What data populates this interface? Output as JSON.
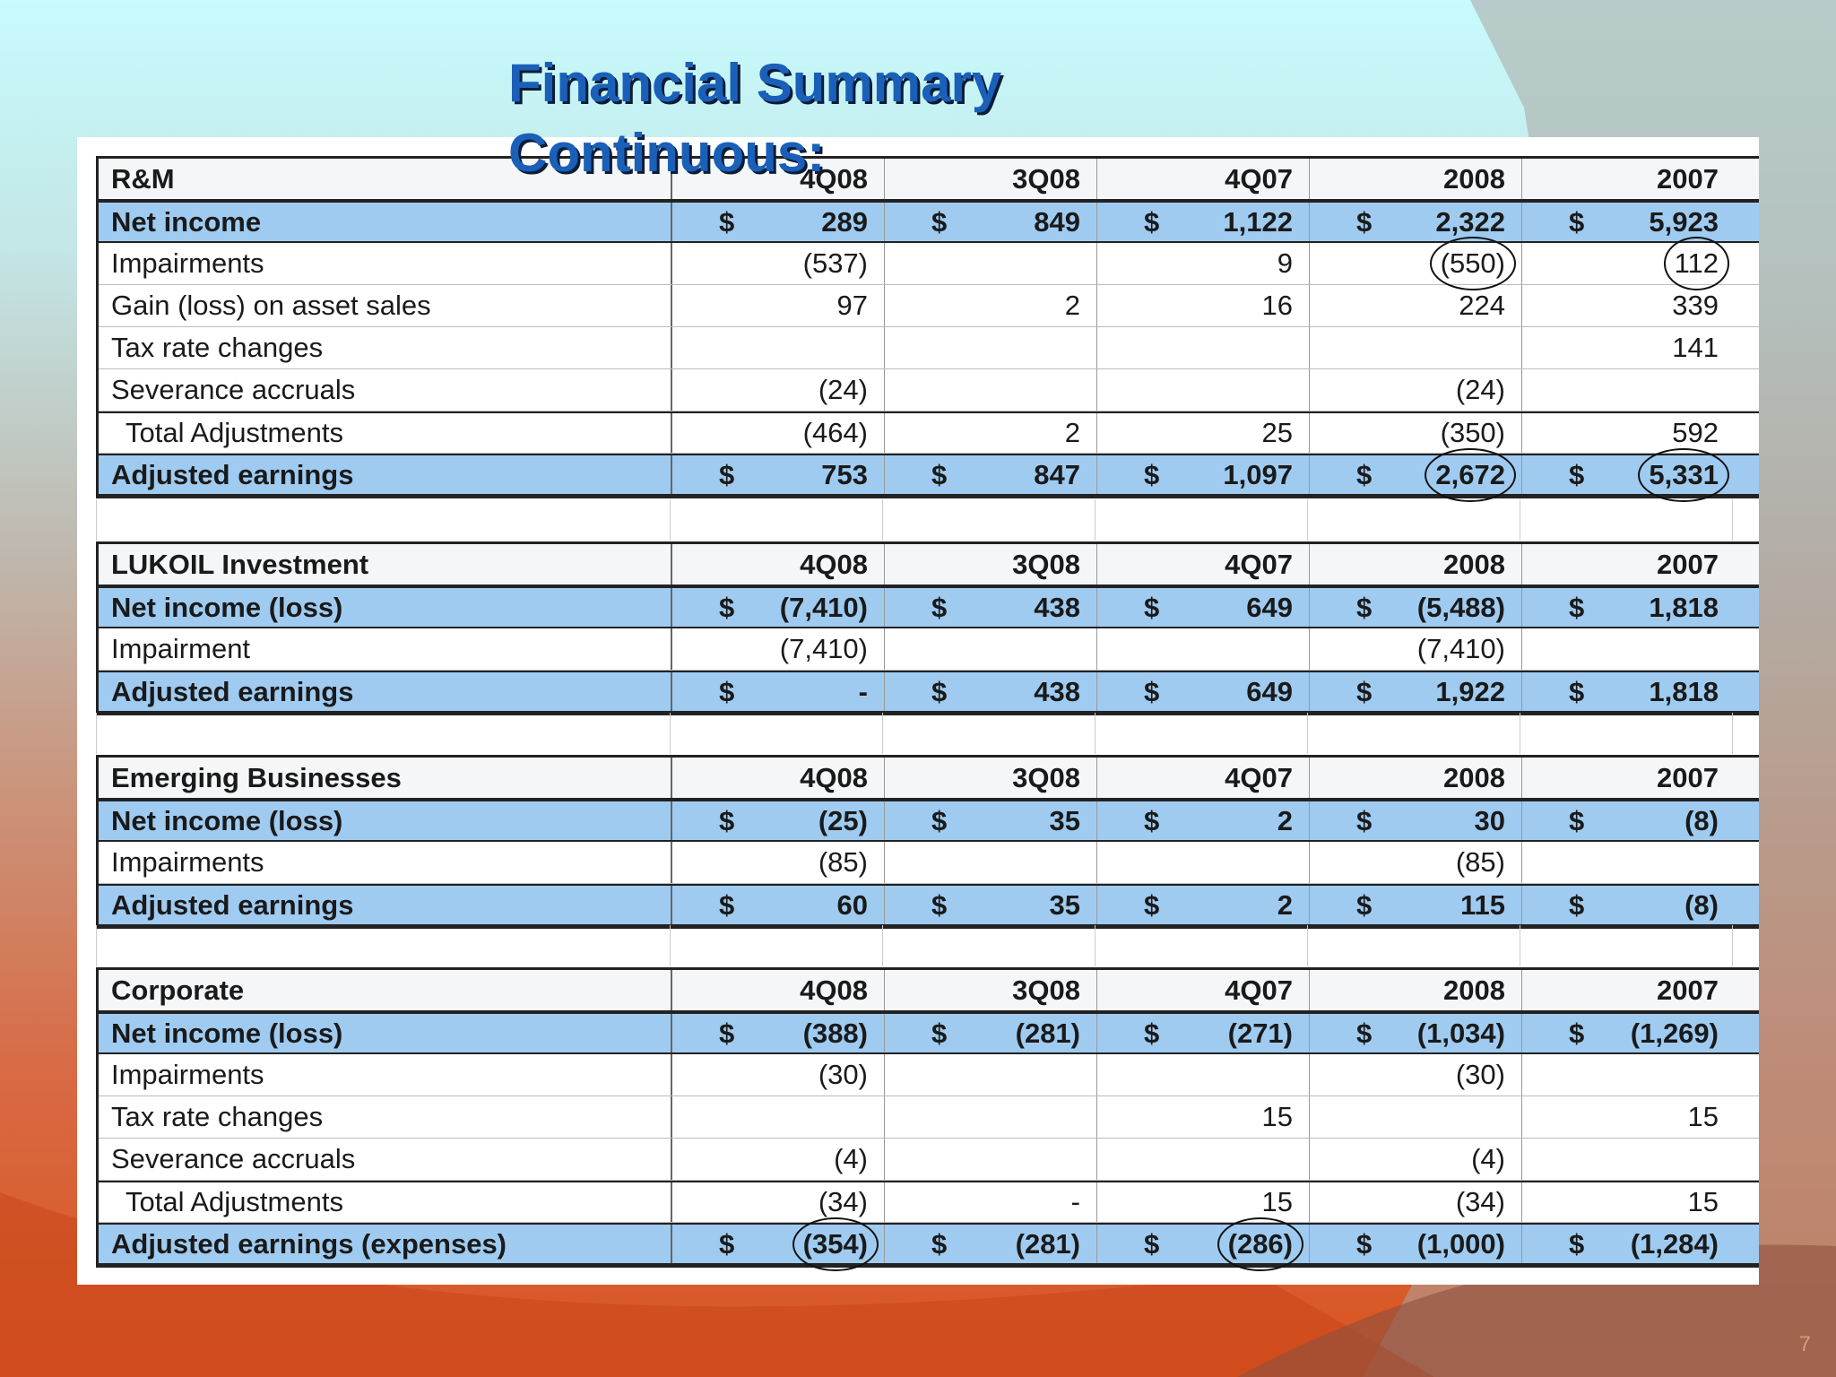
{
  "slide": {
    "title_line1": "Financial Summary",
    "title_line2": "Continuous:",
    "page_number": "7",
    "colors": {
      "title": "#1a5fb8",
      "highlight_row": "#9fcbf1"
    }
  },
  "columns": [
    "4Q08",
    "3Q08",
    "4Q07",
    "2008",
    "2007"
  ],
  "sections": [
    {
      "name": "R&M",
      "headers": [
        "4Q08",
        "3Q08",
        "4Q07",
        "2008",
        "2007"
      ],
      "rows": [
        {
          "label": "Net income",
          "style": "highlight",
          "dollar": true,
          "values": [
            "289",
            "849",
            "1,122",
            "2,322",
            "5,923"
          ]
        },
        {
          "label": "Impairments",
          "values": [
            "(537)",
            "",
            "9",
            "(550)",
            "112"
          ],
          "circled": [
            3,
            4
          ]
        },
        {
          "label": "Gain (loss) on asset sales",
          "values": [
            "97",
            "2",
            "16",
            "224",
            "339"
          ]
        },
        {
          "label": "Tax rate changes",
          "values": [
            "",
            "",
            "",
            "",
            "141"
          ]
        },
        {
          "label": "Severance accruals",
          "values": [
            "(24)",
            "",
            "",
            "(24)",
            ""
          ]
        },
        {
          "label": "Total Adjustments",
          "style": "total",
          "values": [
            "(464)",
            "2",
            "25",
            "(350)",
            "592"
          ]
        },
        {
          "label": "Adjusted earnings",
          "style": "highlight",
          "dollar": true,
          "values": [
            "753",
            "847",
            "1,097",
            "2,672",
            "5,331"
          ],
          "circled": [
            3,
            4
          ]
        }
      ]
    },
    {
      "name": "LUKOIL Investment",
      "headers": [
        "4Q08",
        "3Q08",
        "4Q07",
        "2008",
        "2007"
      ],
      "rows": [
        {
          "label": "Net income (loss)",
          "style": "highlight",
          "dollar": true,
          "values": [
            "(7,410)",
            "438",
            "649",
            "(5,488)",
            "1,818"
          ]
        },
        {
          "label": "Impairment",
          "values": [
            "(7,410)",
            "",
            "",
            "(7,410)",
            ""
          ]
        },
        {
          "label": "Adjusted earnings",
          "style": "highlight",
          "dollar": true,
          "values": [
            "-",
            "438",
            "649",
            "1,922",
            "1,818"
          ]
        }
      ]
    },
    {
      "name": "Emerging Businesses",
      "headers": [
        "4Q08",
        "3Q08",
        "4Q07",
        "2008",
        "2007"
      ],
      "rows": [
        {
          "label": "Net income (loss)",
          "style": "highlight",
          "dollar": true,
          "values": [
            "(25)",
            "35",
            "2",
            "30",
            "(8)"
          ]
        },
        {
          "label": "Impairments",
          "values": [
            "(85)",
            "",
            "",
            "(85)",
            ""
          ]
        },
        {
          "label": "Adjusted earnings",
          "style": "highlight",
          "dollar": true,
          "values": [
            "60",
            "35",
            "2",
            "115",
            "(8)"
          ]
        }
      ]
    },
    {
      "name": "Corporate",
      "headers": [
        "4Q08",
        "3Q08",
        "4Q07",
        "2008",
        "2007"
      ],
      "rows": [
        {
          "label": "Net income (loss)",
          "style": "highlight",
          "dollar": true,
          "values": [
            "(388)",
            "(281)",
            "(271)",
            "(1,034)",
            "(1,269)"
          ]
        },
        {
          "label": "Impairments",
          "values": [
            "(30)",
            "",
            "",
            "(30)",
            ""
          ]
        },
        {
          "label": "Tax rate changes",
          "values": [
            "",
            "",
            "15",
            "",
            "15"
          ]
        },
        {
          "label": "Severance accruals",
          "values": [
            "(4)",
            "",
            "",
            "(4)",
            ""
          ]
        },
        {
          "label": "Total Adjustments",
          "style": "total",
          "values": [
            "(34)",
            "-",
            "15",
            "(34)",
            "15"
          ]
        },
        {
          "label": "Adjusted earnings (expenses)",
          "style": "highlight",
          "dollar": true,
          "values": [
            "(354)",
            "(281)",
            "(286)",
            "(1,000)",
            "(1,284)"
          ],
          "circled": [
            0,
            2
          ]
        }
      ]
    }
  ],
  "currency_symbol": "$"
}
